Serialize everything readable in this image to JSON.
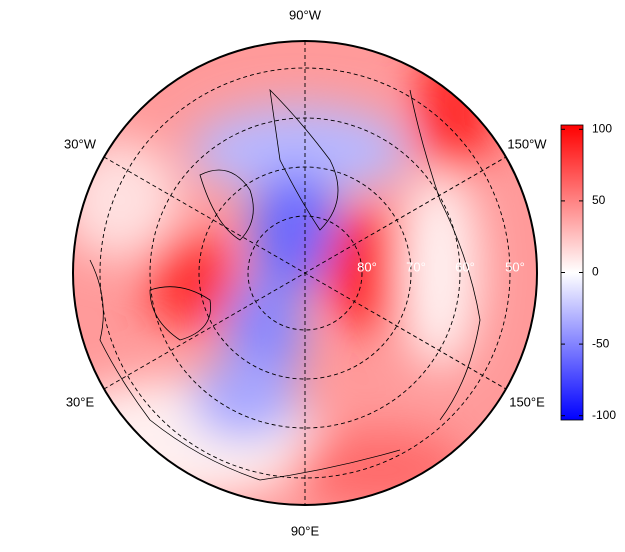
{
  "map": {
    "longitude_labels": [
      "90°W",
      "30°W",
      "150°W",
      "30°E",
      "150°E",
      "90°E"
    ],
    "latitude_labels": [
      "80°",
      "70°",
      "60°",
      "50°"
    ],
    "colorbar": {
      "lim": [
        -103,
        103
      ],
      "ticks": [
        100,
        50,
        0,
        -50,
        -100
      ],
      "colors": [
        "#0000ff",
        "#ffffff",
        "#ff0000"
      ]
    }
  }
}
